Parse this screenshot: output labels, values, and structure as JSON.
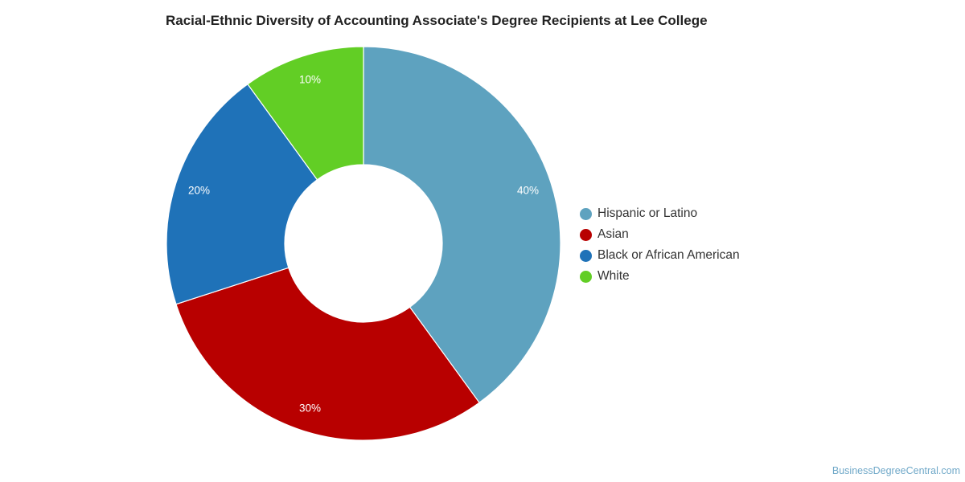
{
  "chart_data": {
    "type": "pie",
    "variant": "donut",
    "title": "Racial-Ethnic Diversity of Accounting Associate's Degree Recipients at Lee College",
    "categories": [
      "Hispanic or Latino",
      "Asian",
      "Black or African American",
      "White"
    ],
    "values": [
      40,
      30,
      20,
      10
    ],
    "value_labels": [
      "40%",
      "30%",
      "20%",
      "10%"
    ],
    "colors": [
      "#5ea2bf",
      "#b80000",
      "#1f72b8",
      "#62ce25"
    ],
    "legend_position": "right"
  },
  "source": "BusinessDegreeCentral.com"
}
